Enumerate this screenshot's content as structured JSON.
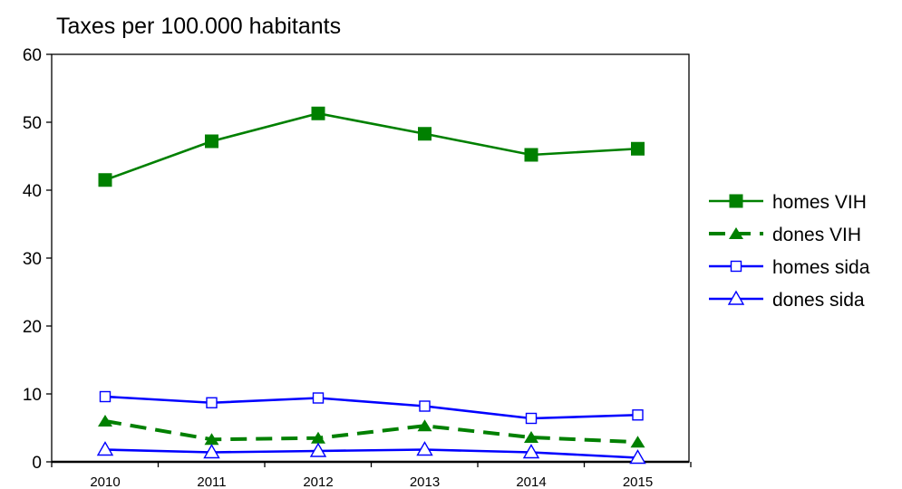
{
  "chart_data": {
    "type": "line",
    "title": "Taxes per 100.000 habitants",
    "xlabel": "",
    "ylabel": "",
    "categories": [
      "2010",
      "2011",
      "2012",
      "2013",
      "2014",
      "2015"
    ],
    "ylim": [
      0,
      60
    ],
    "yticks": [
      "0",
      "10",
      "20",
      "30",
      "40",
      "50",
      "60"
    ],
    "grid": false,
    "legend_position": "right",
    "series": [
      {
        "name": "homes VIH",
        "values": [
          41.5,
          47.2,
          51.3,
          48.3,
          45.2,
          46.1
        ],
        "color": "#008000",
        "marker": "filled-square",
        "dash": "solid"
      },
      {
        "name": "dones VIH",
        "values": [
          6.0,
          3.3,
          3.5,
          5.3,
          3.6,
          2.9
        ],
        "color": "#008000",
        "marker": "filled-triangle",
        "dash": "dashed"
      },
      {
        "name": "homes sida",
        "values": [
          9.6,
          8.7,
          9.4,
          8.2,
          6.4,
          6.9
        ],
        "color": "#0000ff",
        "marker": "open-square",
        "dash": "solid"
      },
      {
        "name": "dones sida",
        "values": [
          1.8,
          1.4,
          1.6,
          1.8,
          1.4,
          0.6
        ],
        "color": "#0000ff",
        "marker": "open-triangle",
        "dash": "solid"
      }
    ]
  }
}
